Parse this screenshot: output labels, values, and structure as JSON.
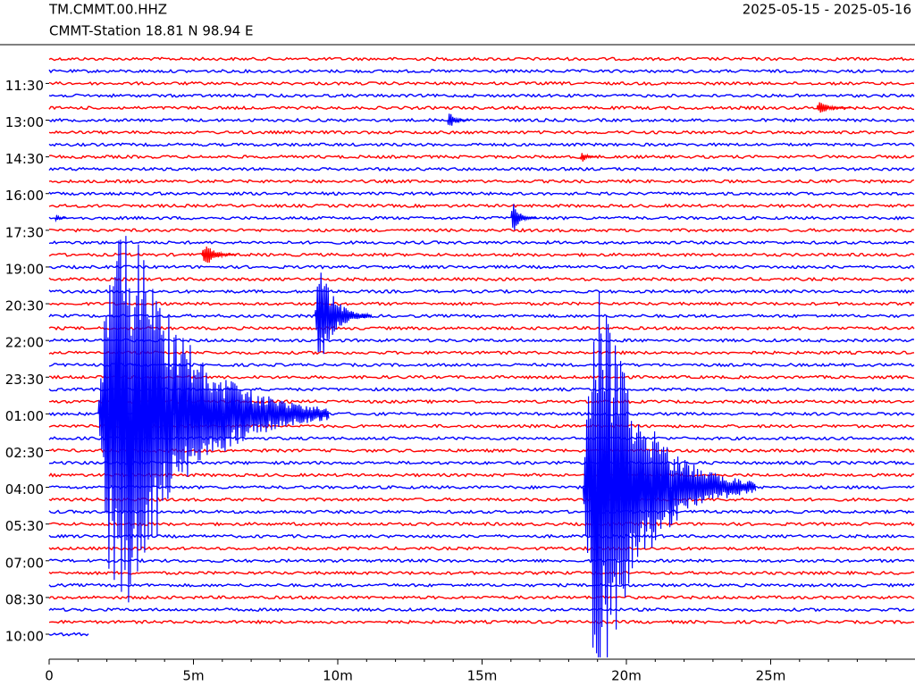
{
  "chart_data": {
    "type": "helicorder",
    "station_code": "TM.CMMT.00.HHZ",
    "station_info": "CMMT-Station  18.81 N 98.94 E",
    "date_range": "2025-05-15 - 2025-05-16",
    "colors": [
      "#ff0000",
      "#0000ff"
    ],
    "rows": 48,
    "xlim": [
      0,
      30
    ],
    "xticks": [
      0,
      {
        "value": 5,
        "label": "5m"
      },
      {
        "value": 10,
        "label": "10m"
      },
      {
        "value": 15,
        "label": "15m"
      },
      {
        "value": 20,
        "label": "20m"
      },
      {
        "value": 25,
        "label": "25m"
      }
    ],
    "ylim": [
      0,
      47
    ],
    "yticks": [
      {
        "value": 2,
        "label": "11:30"
      },
      {
        "value": 5,
        "label": "13:00"
      },
      {
        "value": 8,
        "label": "14:30"
      },
      {
        "value": 11,
        "label": "16:00"
      },
      {
        "value": 14,
        "label": "17:30"
      },
      {
        "value": 17,
        "label": "19:00"
      },
      {
        "value": 20,
        "label": "20:30"
      },
      {
        "value": 23,
        "label": "22:00"
      },
      {
        "value": 26,
        "label": "23:30"
      },
      {
        "value": 29,
        "label": "01:00"
      },
      {
        "value": 32,
        "label": "02:30"
      },
      {
        "value": 35,
        "label": "04:00"
      },
      {
        "value": 38,
        "label": "05:30"
      },
      {
        "value": 41,
        "label": "07:00"
      },
      {
        "value": 44,
        "label": "08:30"
      },
      {
        "value": 47,
        "label": "10:00"
      }
    ],
    "latest_minute": 1.4,
    "events": [
      {
        "row": 29,
        "minute": 1.7,
        "amplitude": 28,
        "duration": 8
      },
      {
        "row": 35,
        "minute": 18.5,
        "amplitude": 25,
        "duration": 6
      },
      {
        "row": 21,
        "minute": 9.2,
        "amplitude": 6,
        "duration": 2
      },
      {
        "row": 16,
        "minute": 5.3,
        "amplitude": 1.5,
        "duration": 1.2
      },
      {
        "row": 13,
        "minute": 16,
        "amplitude": 2,
        "duration": 0.9
      },
      {
        "row": 5,
        "minute": 13.8,
        "amplitude": 1,
        "duration": 0.8
      },
      {
        "row": 4,
        "minute": 26.6,
        "amplitude": 0.8,
        "duration": 1.2
      },
      {
        "row": 8,
        "minute": 18.4,
        "amplitude": 0.8,
        "duration": 0.6
      },
      {
        "row": 13,
        "minute": 0.2,
        "amplitude": 0.5,
        "duration": 0.4
      }
    ]
  }
}
